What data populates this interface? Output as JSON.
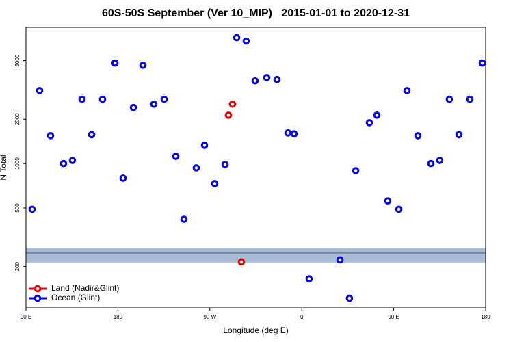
{
  "chart_data": {
    "type": "scatter",
    "title": "60S-50S September (Ver 10_MIP)   2015-01-01 to 2020-12-31",
    "xlabel": "Longitude (deg E)",
    "ylabel": "N Total",
    "xlim": [
      90,
      540
    ],
    "xticks": [
      {
        "value": 90,
        "label": "90 E"
      },
      {
        "value": 180,
        "label": "180"
      },
      {
        "value": 270,
        "label": "90 W"
      },
      {
        "value": 360,
        "label": "0"
      },
      {
        "value": 450,
        "label": "90 E"
      },
      {
        "value": 540,
        "label": "180"
      }
    ],
    "ylim": [
      105,
      8400
    ],
    "yscale": "log",
    "yticks": [
      200,
      500,
      1000,
      2000,
      5000
    ],
    "grid": false,
    "legend": "lower left",
    "band": {
      "ylim": [
        213,
        267
      ],
      "color": "#a8bcd8"
    },
    "hline": 247,
    "series": [
      {
        "name": "Land (Nadir&Glint)",
        "color": "#ee0000",
        "x": [
          288.2,
          292.2,
          300.9
        ],
        "values": [
          2130,
          2530,
          215
        ]
      },
      {
        "name": "Ocean (Glint)",
        "color": "#0000ee",
        "x": [
          96.0,
          103.4,
          114.1,
          126.8,
          135.5,
          144.9,
          154.3,
          165.0,
          177.1,
          185.1,
          195.2,
          204.5,
          215.2,
          225.3,
          236.7,
          244.7,
          256.7,
          264.8,
          274.8,
          284.9,
          296.3,
          305.6,
          314.3,
          325.7,
          335.8,
          346.5,
          352.5,
          367.2,
          397.4,
          406.7,
          412.8,
          426.2,
          433.5,
          444.2,
          455.0,
          463.0,
          473.7,
          486.4,
          495.1,
          504.5,
          513.9,
          524.6,
          536.7
        ],
        "values": [
          490,
          3130,
          1545,
          1000,
          1050,
          2730,
          1570,
          2730,
          4810,
          796,
          2400,
          4650,
          2530,
          2730,
          1120,
          419,
          935,
          1330,
          731,
          986,
          7150,
          6780,
          3640,
          3830,
          3720,
          1614,
          1590,
          165,
          222,
          122,
          895,
          1893,
          2130,
          558,
          490,
          3130,
          1545,
          1000,
          1050,
          2730,
          1570,
          2730,
          4810
        ]
      }
    ]
  }
}
